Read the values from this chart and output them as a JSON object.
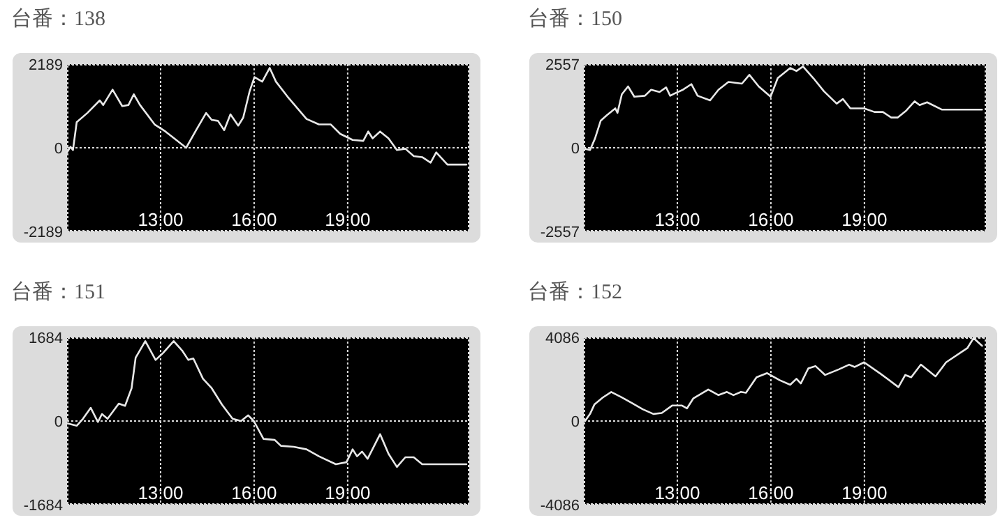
{
  "chart_data": [
    {
      "type": "line",
      "title": "台番：138",
      "xlim": [
        10,
        22.9
      ],
      "xticks": [
        {
          "value": 13,
          "label": "13:00"
        },
        {
          "value": 16,
          "label": "16:00"
        },
        {
          "value": 19,
          "label": "19:00"
        }
      ],
      "ylim": [
        -2189,
        2189
      ],
      "yticks": [
        -2189,
        0,
        2189
      ],
      "grid": true,
      "x": [
        10.0,
        10.11,
        10.19,
        10.31,
        10.65,
        11.05,
        11.16,
        11.46,
        11.77,
        11.97,
        12.14,
        12.34,
        12.81,
        13.15,
        13.82,
        14.16,
        14.46,
        14.64,
        14.84,
        15.04,
        15.24,
        15.49,
        15.65,
        15.85,
        16.01,
        16.26,
        16.5,
        16.7,
        17.07,
        17.68,
        18.08,
        18.46,
        18.76,
        19.16,
        19.5,
        19.66,
        19.8,
        20.04,
        20.31,
        20.58,
        20.85,
        21.12,
        21.39,
        21.66,
        21.84,
        22.2,
        22.81
      ],
      "series": [
        {
          "color": "#e8e8e8",
          "values": [
            -120,
            25,
            -60,
            670,
            910,
            1240,
            1120,
            1520,
            1090,
            1120,
            1400,
            1120,
            610,
            430,
            0,
            490,
            910,
            730,
            705,
            460,
            875,
            580,
            790,
            1460,
            1850,
            1730,
            2090,
            1730,
            1340,
            755,
            610,
            610,
            365,
            205,
            180,
            425,
            245,
            425,
            245,
            -60,
            -25,
            -220,
            -245,
            -390,
            -120,
            -440,
            -440
          ]
        }
      ]
    },
    {
      "type": "line",
      "title": "台番：150",
      "xlim": [
        10,
        22.9
      ],
      "xticks": [
        {
          "value": 13,
          "label": "13:00"
        },
        {
          "value": 16,
          "label": "16:00"
        },
        {
          "value": 19,
          "label": "19:00"
        }
      ],
      "ylim": [
        -2557,
        2557
      ],
      "yticks": [
        -2557,
        0,
        2557
      ],
      "grid": true,
      "x": [
        10.04,
        10.2,
        10.36,
        10.54,
        10.74,
        11.01,
        11.08,
        11.22,
        11.42,
        11.62,
        11.96,
        12.16,
        12.43,
        12.64,
        12.77,
        12.91,
        13.18,
        13.45,
        13.65,
        14.05,
        14.32,
        14.64,
        15.07,
        15.31,
        15.61,
        15.99,
        16.22,
        16.62,
        16.82,
        17.03,
        17.36,
        17.7,
        18.11,
        18.31,
        18.55,
        18.99,
        19.32,
        19.59,
        19.86,
        20.07,
        20.34,
        20.61,
        20.77,
        21.01,
        21.49,
        22.77
      ],
      "series": [
        {
          "color": "#e8e8e8",
          "values": [
            -30,
            -70,
            285,
            825,
            995,
            1205,
            1065,
            1635,
            1875,
            1560,
            1590,
            1775,
            1705,
            1845,
            1590,
            1660,
            1775,
            1945,
            1590,
            1450,
            1775,
            2015,
            1960,
            2230,
            1875,
            1560,
            2130,
            2440,
            2345,
            2485,
            2130,
            1730,
            1350,
            1490,
            1205,
            1205,
            1095,
            1095,
            925,
            925,
            1135,
            1420,
            1305,
            1390,
            1165,
            1165
          ]
        }
      ]
    },
    {
      "type": "line",
      "title": "台番：151",
      "xlim": [
        10,
        22.9
      ],
      "xticks": [
        {
          "value": 13,
          "label": "13:00"
        },
        {
          "value": 16,
          "label": "16:00"
        },
        {
          "value": 19,
          "label": "19:00"
        }
      ],
      "ylim": [
        -1684,
        1684
      ],
      "yticks": [
        -1684,
        0,
        1684
      ],
      "grid": true,
      "x": [
        10.0,
        10.31,
        10.51,
        10.76,
        10.99,
        11.12,
        11.3,
        11.66,
        11.86,
        12.07,
        12.2,
        12.51,
        12.84,
        13.08,
        13.42,
        13.69,
        13.89,
        14.05,
        14.36,
        14.64,
        14.97,
        15.31,
        15.58,
        15.81,
        15.99,
        16.3,
        16.66,
        16.86,
        17.27,
        17.68,
        18.08,
        18.62,
        18.96,
        19.16,
        19.3,
        19.46,
        19.64,
        20.04,
        20.31,
        20.58,
        20.85,
        21.12,
        21.39,
        22.81
      ],
      "series": [
        {
          "color": "#e8e8e8",
          "values": [
            -45,
            -95,
            45,
            265,
            -20,
            140,
            45,
            350,
            305,
            660,
            1275,
            1610,
            1230,
            1370,
            1610,
            1420,
            1230,
            1260,
            850,
            660,
            330,
            45,
            0,
            115,
            0,
            -360,
            -380,
            -500,
            -520,
            -570,
            -710,
            -870,
            -830,
            -570,
            -710,
            -615,
            -760,
            -265,
            -660,
            -925,
            -730,
            -730,
            -870,
            -870
          ]
        }
      ]
    },
    {
      "type": "line",
      "title": "台番：152",
      "xlim": [
        10,
        22.9
      ],
      "xticks": [
        {
          "value": 13,
          "label": "13:00"
        },
        {
          "value": 16,
          "label": "16:00"
        },
        {
          "value": 19,
          "label": "19:00"
        }
      ],
      "ylim": [
        -4086,
        4086
      ],
      "yticks": [
        -4086,
        0,
        4086
      ],
      "grid": true,
      "x": [
        10.04,
        10.2,
        10.34,
        10.61,
        10.88,
        11.22,
        11.55,
        11.89,
        12.23,
        12.5,
        12.84,
        13.14,
        13.31,
        13.51,
        13.99,
        14.32,
        14.59,
        14.8,
        15.04,
        15.2,
        15.54,
        15.88,
        16.28,
        16.62,
        16.82,
        16.96,
        17.2,
        17.43,
        17.74,
        18.18,
        18.51,
        18.69,
        18.99,
        19.53,
        20.09,
        20.31,
        20.5,
        20.81,
        21.28,
        21.62,
        22.3,
        22.5,
        22.77
      ],
      "series": [
        {
          "color": "#e8e8e8",
          "values": [
            0,
            345,
            805,
            1150,
            1420,
            1150,
            870,
            575,
            345,
            390,
            760,
            760,
            620,
            1100,
            1540,
            1265,
            1420,
            1265,
            1420,
            1380,
            2135,
            2340,
            1995,
            1770,
            2065,
            1835,
            2570,
            2685,
            2250,
            2525,
            2755,
            2640,
            2870,
            2295,
            1655,
            2250,
            2135,
            2755,
            2180,
            2870,
            3560,
            4050,
            3675
          ]
        }
      ]
    }
  ]
}
